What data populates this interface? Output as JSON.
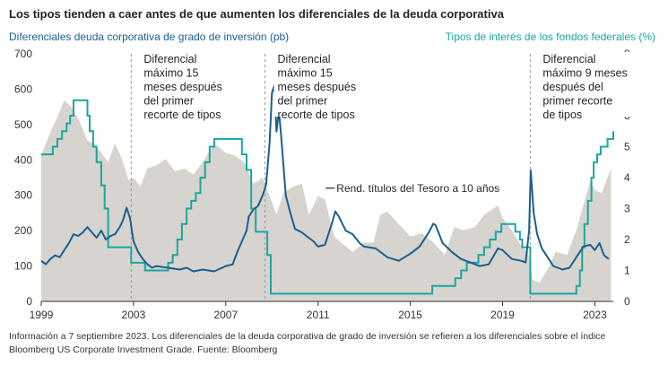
{
  "chart_data": {
    "type": "line",
    "title": "Los tipos tienden a caer antes de que aumenten los diferenciales de la deuda corporativa",
    "left_axis_label": "Diferenciales deuda corporativa de grado de inversión (pb)",
    "right_axis_label": "Tipos de interés de los fondos federales (%)",
    "left_ylim": [
      0,
      700
    ],
    "right_ylim": [
      0,
      8
    ],
    "left_ticks": [
      "0",
      "100",
      "200",
      "300",
      "400",
      "500",
      "600",
      "700"
    ],
    "right_ticks": [
      "0",
      "1",
      "2",
      "3",
      "4",
      "5",
      "6",
      "7",
      "8"
    ],
    "xlim": [
      1999,
      2023.8
    ],
    "x_ticks": [
      "1999",
      "2003",
      "2007",
      "2011",
      "2015",
      "2019",
      "2023"
    ],
    "grid": false,
    "colors": {
      "spread": "#1b5f8f",
      "fed_funds": "#19a7a0",
      "treasury_area": "#d7d3cf",
      "recession_line": "#9a9a9a"
    },
    "series": [
      {
        "name": "Rend. títulos del Tesoro a 10 años",
        "kind": "area",
        "axis": "right",
        "x": [
          1999.0,
          1999.3,
          1999.6,
          2000.0,
          2000.3,
          2000.6,
          2001.0,
          2001.3,
          2001.6,
          2001.9,
          2002.2,
          2002.5,
          2002.8,
          2003.0,
          2003.3,
          2003.6,
          2004.0,
          2004.4,
          2004.8,
          2005.2,
          2005.6,
          2006.0,
          2006.5,
          2007.0,
          2007.4,
          2007.8,
          2008.2,
          2008.6,
          2008.9,
          2009.2,
          2009.5,
          2009.9,
          2010.3,
          2010.6,
          2011.0,
          2011.3,
          2011.7,
          2012.0,
          2012.5,
          2013.0,
          2013.4,
          2013.7,
          2014.0,
          2014.5,
          2015.0,
          2015.5,
          2016.0,
          2016.5,
          2016.9,
          2017.3,
          2017.8,
          2018.2,
          2018.8,
          2019.0,
          2019.4,
          2019.8,
          2020.1,
          2020.3,
          2020.6,
          2021.0,
          2021.3,
          2021.8,
          2022.2,
          2022.5,
          2022.8,
          2023.0,
          2023.3,
          2023.7
        ],
        "values": [
          4.7,
          5.3,
          5.8,
          6.5,
          6.3,
          5.9,
          5.2,
          5.1,
          4.8,
          4.5,
          5.1,
          4.6,
          3.9,
          4.0,
          3.7,
          4.3,
          4.4,
          4.6,
          4.2,
          4.3,
          4.1,
          4.5,
          5.1,
          4.8,
          4.7,
          4.5,
          3.8,
          4.0,
          3.4,
          2.8,
          3.5,
          3.7,
          3.8,
          2.8,
          3.4,
          3.3,
          2.1,
          1.9,
          1.6,
          1.9,
          1.9,
          2.8,
          2.9,
          2.5,
          2.1,
          2.2,
          1.9,
          1.5,
          2.4,
          2.3,
          2.4,
          2.8,
          3.1,
          2.7,
          2.3,
          1.8,
          1.6,
          0.7,
          0.6,
          1.1,
          1.6,
          1.5,
          2.3,
          3.1,
          3.9,
          3.6,
          3.5,
          4.3
        ]
      },
      {
        "name": "Tipos de interés de los fondos federales (%)",
        "kind": "step",
        "axis": "right",
        "x": [
          1999.0,
          1999.5,
          1999.7,
          1999.9,
          2000.1,
          2000.25,
          2000.4,
          2001.0,
          2001.1,
          2001.25,
          2001.4,
          2001.6,
          2001.75,
          2001.9,
          2002.9,
          2003.5,
          2004.5,
          2004.7,
          2004.9,
          2005.1,
          2005.3,
          2005.5,
          2005.7,
          2005.9,
          2006.1,
          2006.3,
          2006.5,
          2007.7,
          2007.9,
          2008.1,
          2008.3,
          2008.8,
          2008.95,
          2015.95,
          2016.95,
          2017.2,
          2017.45,
          2017.95,
          2018.2,
          2018.45,
          2018.7,
          2018.95,
          2019.55,
          2019.75,
          2019.85,
          2020.2,
          2022.2,
          2022.35,
          2022.45,
          2022.55,
          2022.7,
          2022.85,
          2022.95,
          2023.1,
          2023.25,
          2023.55,
          2023.8
        ],
        "values": [
          4.75,
          5.0,
          5.25,
          5.5,
          5.75,
          6.0,
          6.5,
          6.0,
          5.5,
          5.0,
          4.5,
          3.75,
          3.0,
          1.75,
          1.25,
          1.0,
          1.25,
          1.5,
          2.0,
          2.5,
          3.0,
          3.25,
          3.5,
          4.0,
          4.5,
          5.0,
          5.25,
          4.75,
          4.25,
          3.0,
          2.25,
          1.5,
          0.25,
          0.5,
          0.75,
          1.0,
          1.25,
          1.5,
          1.75,
          2.0,
          2.25,
          2.5,
          2.25,
          2.0,
          1.75,
          0.25,
          0.5,
          1.0,
          1.75,
          2.5,
          3.25,
          4.0,
          4.5,
          4.75,
          5.0,
          5.25,
          5.5
        ]
      },
      {
        "name": "Diferenciales deuda corporativa de grado de inversión (pb)",
        "kind": "line",
        "axis": "left",
        "x": [
          1999.0,
          1999.2,
          1999.4,
          1999.6,
          1999.8,
          2000.0,
          2000.2,
          2000.4,
          2000.6,
          2000.8,
          2001.0,
          2001.2,
          2001.4,
          2001.6,
          2001.8,
          2002.0,
          2002.2,
          2002.4,
          2002.55,
          2002.7,
          2002.85,
          2003.0,
          2003.2,
          2003.4,
          2003.6,
          2003.8,
          2004.0,
          2004.5,
          2005.0,
          2005.3,
          2005.6,
          2006.0,
          2006.5,
          2007.0,
          2007.3,
          2007.5,
          2007.7,
          2007.9,
          2008.0,
          2008.2,
          2008.4,
          2008.6,
          2008.75,
          2008.9,
          2009.0,
          2009.1,
          2009.2,
          2009.3,
          2009.4,
          2009.6,
          2009.8,
          2010.0,
          2010.3,
          2010.5,
          2010.8,
          2011.0,
          2011.3,
          2011.6,
          2011.75,
          2011.9,
          2012.2,
          2012.5,
          2012.8,
          2013.0,
          2013.5,
          2014.0,
          2014.5,
          2015.0,
          2015.4,
          2015.8,
          2016.0,
          2016.1,
          2016.4,
          2016.8,
          2017.2,
          2017.6,
          2018.0,
          2018.4,
          2018.8,
          2019.0,
          2019.4,
          2019.8,
          2020.0,
          2020.15,
          2020.22,
          2020.35,
          2020.5,
          2020.7,
          2020.9,
          2021.2,
          2021.6,
          2021.9,
          2022.2,
          2022.5,
          2022.8,
          2023.0,
          2023.2,
          2023.4,
          2023.6
        ],
        "values": [
          115,
          105,
          120,
          130,
          125,
          145,
          165,
          190,
          185,
          195,
          210,
          195,
          180,
          200,
          175,
          185,
          190,
          210,
          230,
          265,
          235,
          170,
          140,
          120,
          105,
          95,
          100,
          95,
          90,
          95,
          85,
          90,
          85,
          100,
          105,
          140,
          170,
          200,
          240,
          260,
          270,
          300,
          330,
          450,
          590,
          610,
          480,
          540,
          470,
          300,
          250,
          205,
          195,
          185,
          170,
          155,
          160,
          220,
          255,
          240,
          200,
          190,
          165,
          155,
          150,
          125,
          115,
          135,
          155,
          195,
          220,
          215,
          165,
          140,
          120,
          110,
          100,
          105,
          150,
          145,
          120,
          115,
          110,
          200,
          370,
          250,
          190,
          150,
          130,
          100,
          90,
          95,
          125,
          155,
          160,
          145,
          165,
          130,
          120
        ]
      }
    ],
    "recession_lines_x": [
      2002.9,
      2008.7,
      2020.2
    ],
    "annotations": [
      {
        "key": "a1",
        "x": 2002.9,
        "lines": [
          "Diferencial",
          "máximo 15",
          "meses después",
          "del primer",
          "recorte de tipos"
        ]
      },
      {
        "key": "a2",
        "x": 2008.7,
        "lines": [
          "Diferencial",
          "máximo 15",
          "meses después",
          "del primer",
          "recorte de tipos"
        ]
      },
      {
        "key": "a3",
        "x": 2020.2,
        "lines": [
          "Diferencial",
          "máximo 9 meses",
          "después del",
          "primer recorte",
          "de tipos"
        ]
      }
    ],
    "inline_label": "Rend. títulos del Tesoro a 10 años",
    "inline_label_x": 2011.8,
    "inline_label_y_pb": 310
  },
  "footer": {
    "line1": "Información a 7 septiembre 2023. Los diferenciales de la deuda corporativa de grado de inversión se refieren a los diferenciales sobre el índice",
    "line2": "Bloomberg US Corporate Investment Grade. Fuente: Bloomberg"
  }
}
